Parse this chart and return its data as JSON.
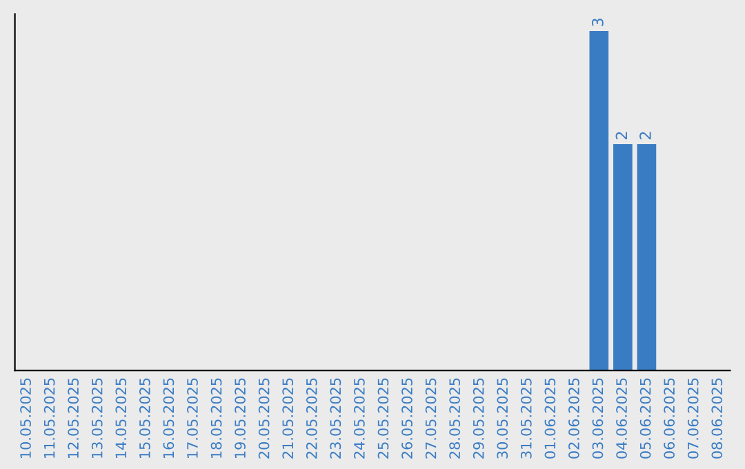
{
  "chart_data": {
    "type": "bar",
    "categories": [
      "10.05.2025",
      "11.05.2025",
      "12.05.2025",
      "13.05.2025",
      "14.05.2025",
      "15.05.2025",
      "16.05.2025",
      "17.05.2025",
      "18.05.2025",
      "19.05.2025",
      "20.05.2025",
      "21.05.2025",
      "22.05.2025",
      "23.05.2025",
      "24.05.2025",
      "25.05.2025",
      "26.05.2025",
      "27.05.2025",
      "28.05.2025",
      "29.05.2025",
      "30.05.2025",
      "31.05.2025",
      "01.06.2025",
      "02.06.2025",
      "03.06.2025",
      "04.06.2025",
      "05.06.2025",
      "06.06.2025",
      "07.06.2025",
      "08.06.2025"
    ],
    "values": [
      null,
      null,
      null,
      null,
      null,
      null,
      null,
      null,
      null,
      null,
      null,
      null,
      null,
      null,
      null,
      null,
      null,
      null,
      null,
      null,
      null,
      null,
      null,
      null,
      3,
      2,
      2,
      null,
      null,
      null
    ],
    "value_labels": [
      null,
      null,
      null,
      null,
      null,
      null,
      null,
      null,
      null,
      null,
      null,
      null,
      null,
      null,
      null,
      null,
      null,
      null,
      null,
      null,
      null,
      null,
      null,
      null,
      "3",
      "2",
      "2",
      null,
      null,
      null
    ],
    "color": "#3a7cc4",
    "tick_labels": "x",
    "grid": false,
    "legend": false
  }
}
